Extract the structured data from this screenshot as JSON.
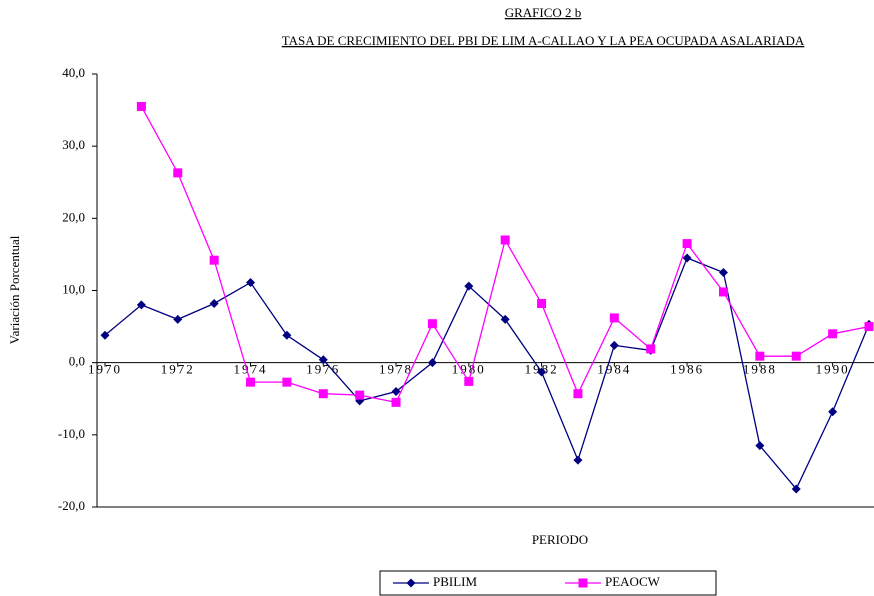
{
  "chart_data": {
    "type": "line",
    "title": "GRAFICO  2 b",
    "subtitle": "TASA DE CRECIMIENTO DEL PBI  DE LIM A-CALLAO Y LA PEA OCUPADA ASALARIADA",
    "x_label": "PERIODO",
    "y_label": "Variación Porcentual",
    "x": [
      1970,
      1971,
      1972,
      1973,
      1974,
      1975,
      1976,
      1977,
      1978,
      1979,
      1980,
      1981,
      1982,
      1983,
      1984,
      1985,
      1986,
      1987,
      1988,
      1989,
      1990,
      1991
    ],
    "xlim": [
      1970,
      1991
    ],
    "xticks": [
      1970,
      1972,
      1974,
      1976,
      1978,
      1980,
      1982,
      1984,
      1986,
      1988,
      1990
    ],
    "ylim": [
      -20,
      40
    ],
    "yticks": [
      {
        "value": -20,
        "label": "-20,0"
      },
      {
        "value": -10,
        "label": "-10,0"
      },
      {
        "value": 0,
        "label": "0,0"
      },
      {
        "value": 10,
        "label": "10,0"
      },
      {
        "value": 20,
        "label": "20,0"
      },
      {
        "value": 30,
        "label": "30,0"
      },
      {
        "value": 40,
        "label": "40,0"
      }
    ],
    "legend": "bottom",
    "series": [
      {
        "name": "PBILIM",
        "color": "#000080",
        "marker": "diamond",
        "values": [
          3.8,
          8.0,
          6.0,
          8.2,
          11.1,
          3.8,
          0.4,
          -5.3,
          -4.0,
          0.0,
          10.6,
          6.0,
          -1.3,
          -13.5,
          2.4,
          1.7,
          14.5,
          12.5,
          -11.5,
          -17.5,
          -6.8,
          5.3
        ]
      },
      {
        "name": "PEAOCW",
        "color": "#ff00ff",
        "marker": "square",
        "values": [
          null,
          35.5,
          26.3,
          14.2,
          -2.7,
          -2.7,
          -4.3,
          -4.5,
          -5.5,
          5.4,
          -2.6,
          17.0,
          8.2,
          -4.3,
          6.2,
          1.9,
          16.5,
          9.8,
          0.9,
          0.9,
          4.0,
          5.0
        ]
      }
    ]
  }
}
